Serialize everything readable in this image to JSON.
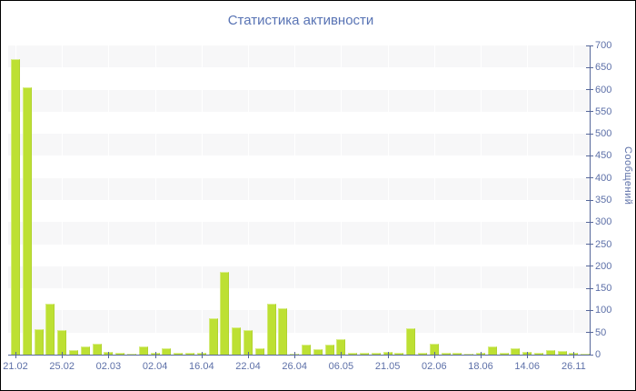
{
  "chart_data": {
    "type": "bar",
    "title": "Статистика активности",
    "ylabel": "Сообщений",
    "xlabel": "",
    "ylim": [
      0,
      700
    ],
    "y_ticks": [
      0,
      50,
      100,
      150,
      200,
      250,
      300,
      350,
      400,
      450,
      500,
      550,
      600,
      650,
      700
    ],
    "x_tick_labels": [
      "21.02",
      "25.02",
      "02.03",
      "02.04",
      "16.04",
      "22.04",
      "26.04",
      "06.05",
      "21.05",
      "02.06",
      "18.06",
      "14.06",
      "26.11"
    ],
    "label_every_n_bars": 4,
    "values": [
      670,
      605,
      58,
      115,
      56,
      10,
      19,
      25,
      6,
      4,
      2,
      19,
      5,
      15,
      4,
      5,
      5,
      82,
      188,
      62,
      55,
      14,
      115,
      105,
      3,
      23,
      12,
      22,
      35,
      4,
      4,
      5,
      6,
      4,
      60,
      4,
      25,
      5,
      4,
      3,
      5,
      18,
      4,
      15,
      6,
      5,
      10,
      9,
      5,
      3
    ],
    "legend": null,
    "grid": "horizontal-band-stripes",
    "legend_position": "none",
    "colors": {
      "bar": "#bde033",
      "axis": "#56679a",
      "tick_text": "#5d70a8",
      "title_text": "#5873b4",
      "stripe": "#f7f7f8",
      "background": "#ffffff"
    }
  }
}
